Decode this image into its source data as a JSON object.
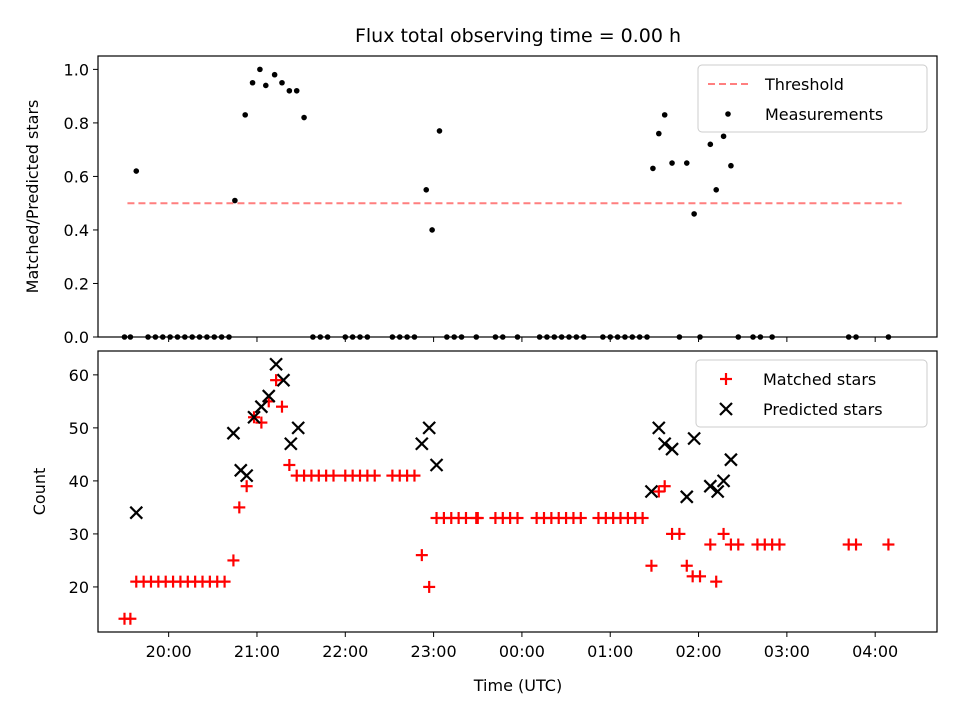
{
  "title": "Flux total observing time = 0.00 h",
  "colors": {
    "threshold": "#ff7f7f",
    "measurement": "#000000",
    "matched": "#ff0000",
    "predicted": "#000000"
  },
  "chart_data": [
    {
      "type": "scatter",
      "title": "Flux total observing time = 0.00 h",
      "ylabel": "Matched/Predicted stars",
      "xlabel": "",
      "ylim": [
        0,
        1.05
      ],
      "yticks": [
        0.0,
        0.2,
        0.4,
        0.6,
        0.8,
        1.0
      ],
      "ytick_labels": [
        "0.0",
        "0.2",
        "0.4",
        "0.6",
        "0.8",
        "1.0"
      ],
      "xlim": [
        "19:12",
        "04:42"
      ],
      "legend_position": "top-right",
      "threshold": {
        "name": "Threshold",
        "value": 0.5,
        "x_start": "19:32",
        "x_end": "04:18",
        "style": "dashed"
      },
      "series": [
        {
          "name": "Measurements",
          "marker": "dot",
          "points": [
            [
              "19:30",
              0.0
            ],
            [
              "19:34",
              0.0
            ],
            [
              "19:38",
              0.62
            ],
            [
              "19:46",
              0.0
            ],
            [
              "19:51",
              0.0
            ],
            [
              "19:56",
              0.0
            ],
            [
              "20:01",
              0.0
            ],
            [
              "20:06",
              0.0
            ],
            [
              "20:11",
              0.0
            ],
            [
              "20:16",
              0.0
            ],
            [
              "20:21",
              0.0
            ],
            [
              "20:26",
              0.0
            ],
            [
              "20:31",
              0.0
            ],
            [
              "20:36",
              0.0
            ],
            [
              "20:41",
              0.0
            ],
            [
              "20:45",
              0.51
            ],
            [
              "20:52",
              0.83
            ],
            [
              "20:57",
              0.95
            ],
            [
              "21:02",
              1.0
            ],
            [
              "21:06",
              0.94
            ],
            [
              "21:12",
              0.98
            ],
            [
              "21:17",
              0.95
            ],
            [
              "21:22",
              0.92
            ],
            [
              "21:27",
              0.92
            ],
            [
              "21:32",
              0.82
            ],
            [
              "21:38",
              0.0
            ],
            [
              "21:43",
              0.0
            ],
            [
              "21:48",
              0.0
            ],
            [
              "22:00",
              0.0
            ],
            [
              "22:05",
              0.0
            ],
            [
              "22:10",
              0.0
            ],
            [
              "22:15",
              0.0
            ],
            [
              "22:32",
              0.0
            ],
            [
              "22:37",
              0.0
            ],
            [
              "22:42",
              0.0
            ],
            [
              "22:47",
              0.0
            ],
            [
              "22:55",
              0.55
            ],
            [
              "22:59",
              0.4
            ],
            [
              "23:04",
              0.77
            ],
            [
              "23:09",
              0.0
            ],
            [
              "23:14",
              0.0
            ],
            [
              "23:19",
              0.0
            ],
            [
              "23:29",
              0.0
            ],
            [
              "23:42",
              0.0
            ],
            [
              "23:47",
              0.0
            ],
            [
              "23:57",
              0.0
            ],
            [
              "00:12",
              0.0
            ],
            [
              "00:17",
              0.0
            ],
            [
              "00:22",
              0.0
            ],
            [
              "00:27",
              0.0
            ],
            [
              "00:32",
              0.0
            ],
            [
              "00:37",
              0.0
            ],
            [
              "00:42",
              0.0
            ],
            [
              "00:55",
              0.0
            ],
            [
              "01:00",
              0.0
            ],
            [
              "01:05",
              0.0
            ],
            [
              "01:10",
              0.0
            ],
            [
              "01:15",
              0.0
            ],
            [
              "01:20",
              0.0
            ],
            [
              "01:25",
              0.0
            ],
            [
              "01:29",
              0.63
            ],
            [
              "01:33",
              0.76
            ],
            [
              "01:37",
              0.83
            ],
            [
              "01:42",
              0.65
            ],
            [
              "01:47",
              0.0
            ],
            [
              "01:52",
              0.65
            ],
            [
              "01:57",
              0.46
            ],
            [
              "02:01",
              0.0
            ],
            [
              "02:08",
              0.72
            ],
            [
              "02:12",
              0.55
            ],
            [
              "02:14",
              0.83
            ],
            [
              "02:17",
              0.75
            ],
            [
              "02:22",
              0.64
            ],
            [
              "02:27",
              0.0
            ],
            [
              "02:37",
              0.0
            ],
            [
              "02:42",
              0.0
            ],
            [
              "02:50",
              0.0
            ],
            [
              "03:42",
              0.0
            ],
            [
              "03:47",
              0.0
            ],
            [
              "04:09",
              0.0
            ]
          ]
        }
      ]
    },
    {
      "type": "scatter",
      "title": "",
      "ylabel": "Count",
      "xlabel": "Time (UTC)",
      "ylim": [
        11.5,
        64.5
      ],
      "yticks": [
        20,
        30,
        40,
        50,
        60
      ],
      "ytick_labels": [
        "20",
        "30",
        "40",
        "50",
        "60"
      ],
      "xlim": [
        "19:12",
        "04:42"
      ],
      "xticks": [
        "20:00",
        "21:00",
        "22:00",
        "23:00",
        "00:00",
        "01:00",
        "02:00",
        "03:00",
        "04:00"
      ],
      "legend_position": "top-right",
      "series": [
        {
          "name": "Matched stars",
          "marker": "plus",
          "points": [
            [
              "19:30",
              14
            ],
            [
              "19:34",
              14
            ],
            [
              "19:38",
              21
            ],
            [
              "19:43",
              21
            ],
            [
              "19:48",
              21
            ],
            [
              "19:53",
              21
            ],
            [
              "19:58",
              21
            ],
            [
              "20:03",
              21
            ],
            [
              "20:08",
              21
            ],
            [
              "20:13",
              21
            ],
            [
              "20:18",
              21
            ],
            [
              "20:23",
              21
            ],
            [
              "20:28",
              21
            ],
            [
              "20:33",
              21
            ],
            [
              "20:38",
              21
            ],
            [
              "20:44",
              25
            ],
            [
              "20:48",
              35
            ],
            [
              "20:53",
              39
            ],
            [
              "20:58",
              52
            ],
            [
              "21:03",
              51
            ],
            [
              "21:08",
              55
            ],
            [
              "21:13",
              59
            ],
            [
              "21:17",
              54
            ],
            [
              "21:22",
              43
            ],
            [
              "21:27",
              41
            ],
            [
              "21:32",
              41
            ],
            [
              "21:37",
              41
            ],
            [
              "21:42",
              41
            ],
            [
              "21:47",
              41
            ],
            [
              "21:52",
              41
            ],
            [
              "22:00",
              41
            ],
            [
              "22:05",
              41
            ],
            [
              "22:10",
              41
            ],
            [
              "22:15",
              41
            ],
            [
              "22:20",
              41
            ],
            [
              "22:32",
              41
            ],
            [
              "22:37",
              41
            ],
            [
              "22:42",
              41
            ],
            [
              "22:47",
              41
            ],
            [
              "22:52",
              26
            ],
            [
              "22:57",
              20
            ],
            [
              "23:02",
              33
            ],
            [
              "23:07",
              33
            ],
            [
              "23:12",
              33
            ],
            [
              "23:17",
              33
            ],
            [
              "23:22",
              33
            ],
            [
              "23:29",
              33
            ],
            [
              "23:30",
              33
            ],
            [
              "23:42",
              33
            ],
            [
              "23:47",
              33
            ],
            [
              "23:52",
              33
            ],
            [
              "23:57",
              33
            ],
            [
              "00:10",
              33
            ],
            [
              "00:15",
              33
            ],
            [
              "00:20",
              33
            ],
            [
              "00:25",
              33
            ],
            [
              "00:30",
              33
            ],
            [
              "00:35",
              33
            ],
            [
              "00:40",
              33
            ],
            [
              "00:52",
              33
            ],
            [
              "00:57",
              33
            ],
            [
              "01:02",
              33
            ],
            [
              "01:07",
              33
            ],
            [
              "01:12",
              33
            ],
            [
              "01:17",
              33
            ],
            [
              "01:22",
              33
            ],
            [
              "01:28",
              24
            ],
            [
              "01:33",
              38
            ],
            [
              "01:37",
              39
            ],
            [
              "01:42",
              30
            ],
            [
              "01:47",
              30
            ],
            [
              "01:52",
              24
            ],
            [
              "01:56",
              22
            ],
            [
              "02:01",
              22
            ],
            [
              "02:08",
              28
            ],
            [
              "02:12",
              21
            ],
            [
              "02:17",
              30
            ],
            [
              "02:22",
              28
            ],
            [
              "02:27",
              28
            ],
            [
              "02:40",
              28
            ],
            [
              "02:45",
              28
            ],
            [
              "02:50",
              28
            ],
            [
              "02:55",
              28
            ],
            [
              "03:42",
              28
            ],
            [
              "03:47",
              28
            ],
            [
              "04:09",
              28
            ]
          ]
        },
        {
          "name": "Predicted stars",
          "marker": "x",
          "points": [
            [
              "19:38",
              34
            ],
            [
              "20:44",
              49
            ],
            [
              "20:49",
              42
            ],
            [
              "20:53",
              41
            ],
            [
              "20:58",
              52
            ],
            [
              "21:03",
              54
            ],
            [
              "21:08",
              56
            ],
            [
              "21:13",
              62
            ],
            [
              "21:18",
              59
            ],
            [
              "21:23",
              47
            ],
            [
              "21:28",
              50
            ],
            [
              "22:52",
              47
            ],
            [
              "22:57",
              50
            ],
            [
              "23:02",
              43
            ],
            [
              "01:28",
              38
            ],
            [
              "01:33",
              50
            ],
            [
              "01:37",
              47
            ],
            [
              "01:42",
              46
            ],
            [
              "01:52",
              37
            ],
            [
              "01:57",
              48
            ],
            [
              "02:08",
              39
            ],
            [
              "02:13",
              38
            ],
            [
              "02:17",
              40
            ],
            [
              "02:22",
              44
            ]
          ]
        }
      ]
    }
  ]
}
